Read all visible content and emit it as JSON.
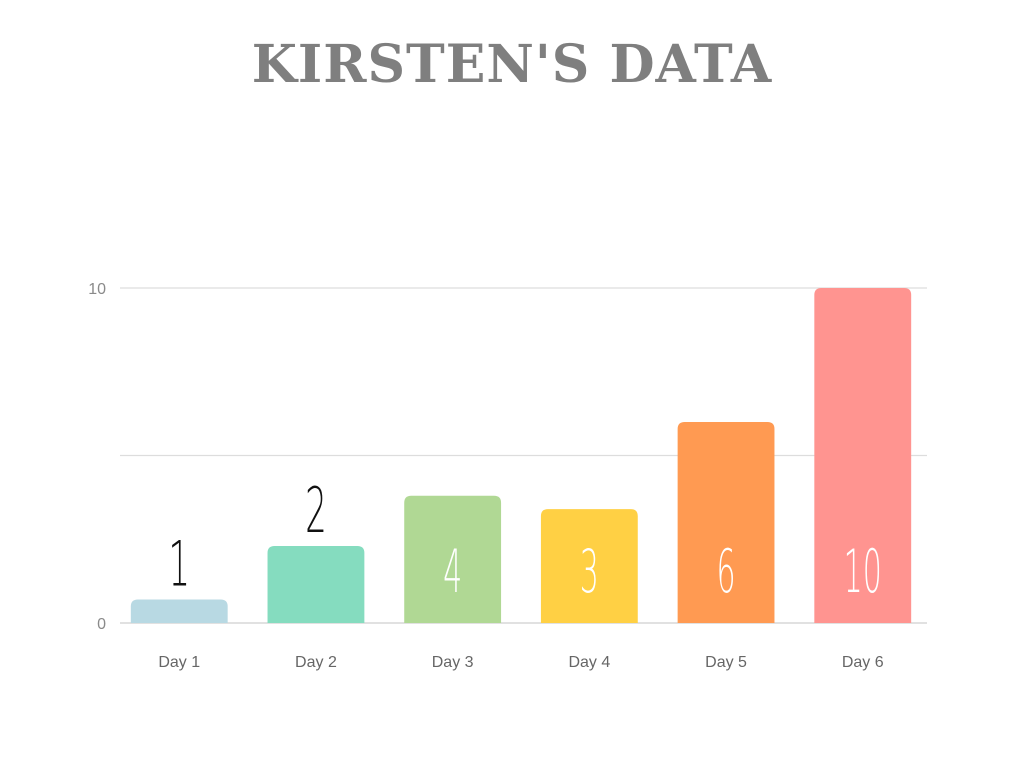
{
  "chart_data": {
    "type": "bar",
    "title": "KIRSTEN'S DATA",
    "xlabel": "",
    "ylabel": "",
    "categories": [
      "Day 1",
      "Day 2",
      "Day 3",
      "Day 4",
      "Day 5",
      "Day 6"
    ],
    "values": [
      1,
      2,
      4,
      3,
      6,
      10
    ],
    "bar_heights": [
      0.7,
      2.3,
      3.8,
      3.4,
      6.0,
      10.0
    ],
    "data_labels": [
      "1",
      "2",
      "4",
      "3",
      "6",
      "10"
    ],
    "colors": [
      "#b8d9e3",
      "#85dcbf",
      "#b0d894",
      "#ffd044",
      "#ff9a52",
      "#ff9490"
    ],
    "label_colors": [
      "#111111",
      "#111111",
      "#ffffff",
      "#ffffff",
      "#ffffff",
      "#ffffff"
    ],
    "label_position": [
      "above",
      "above",
      "inside",
      "inside",
      "inside",
      "inside"
    ],
    "ylim": [
      0,
      10
    ],
    "yticks": [
      0,
      10
    ],
    "ytick_labels": [
      "0",
      "10"
    ],
    "gridlines": [
      0,
      5,
      10
    ],
    "grid": true,
    "legend": "none"
  }
}
